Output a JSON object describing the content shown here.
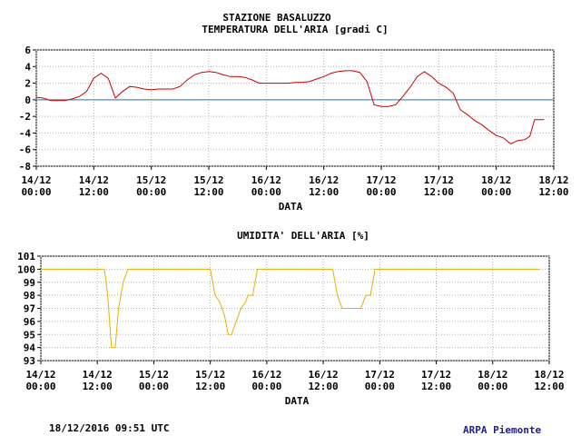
{
  "footer": {
    "timestamp": "18/12/2016 09:51 UTC",
    "organization": "ARPA Piemonte"
  },
  "chart_data": [
    {
      "type": "line",
      "title": "STAZIONE BASALUZZO",
      "subtitle": "TEMPERATURA DELL'ARIA [gradi C]",
      "xlabel": "DATA",
      "ylabel": "",
      "x_ticks": [
        {
          "date": "14/12",
          "time": "00:00"
        },
        {
          "date": "14/12",
          "time": "12:00"
        },
        {
          "date": "15/12",
          "time": "00:00"
        },
        {
          "date": "15/12",
          "time": "12:00"
        },
        {
          "date": "16/12",
          "time": "00:00"
        },
        {
          "date": "16/12",
          "time": "12:00"
        },
        {
          "date": "17/12",
          "time": "00:00"
        },
        {
          "date": "17/12",
          "time": "12:00"
        },
        {
          "date": "18/12",
          "time": "00:00"
        },
        {
          "date": "18/12",
          "time": "12:00"
        }
      ],
      "xlim": [
        0,
        108
      ],
      "ylim": [
        -8,
        6
      ],
      "y_ticks": [
        6,
        4,
        2,
        0,
        -2,
        -4,
        -6,
        -8
      ],
      "grid": true,
      "zero_line_color": "#1f7ab8",
      "series_color": "#cc0000",
      "x": [
        0,
        1.5,
        3,
        4.5,
        6,
        7.5,
        9,
        10.5,
        12,
        13.5,
        15,
        16.5,
        18,
        19.5,
        21,
        22.5,
        24,
        25.5,
        27,
        28.5,
        30,
        31.5,
        33,
        34.5,
        36,
        37.5,
        39,
        40.5,
        42,
        43.5,
        45,
        46.5,
        48,
        49.5,
        51,
        52.5,
        54,
        55.5,
        57,
        58.5,
        60,
        61.5,
        63,
        64.5,
        66,
        67.5,
        69,
        70.5,
        72,
        73.5,
        75,
        76.5,
        78,
        79.5,
        81,
        82.5,
        84,
        85.5,
        87,
        88.5,
        90,
        91.5,
        93,
        94.5,
        96,
        97.5,
        99,
        100.5,
        102,
        103,
        104,
        105,
        106
      ],
      "y": [
        0.3,
        0.2,
        -0.1,
        -0.1,
        -0.1,
        0.1,
        0.4,
        1.0,
        2.6,
        3.2,
        2.6,
        0.2,
        1.0,
        1.6,
        1.5,
        1.3,
        1.2,
        1.3,
        1.3,
        1.3,
        1.6,
        2.4,
        3.0,
        3.3,
        3.4,
        3.3,
        3.0,
        2.8,
        2.8,
        2.7,
        2.4,
        2.0,
        2.0,
        2.0,
        2.0,
        2.0,
        2.1,
        2.1,
        2.2,
        2.5,
        2.8,
        3.2,
        3.4,
        3.5,
        3.5,
        3.3,
        2.2,
        -0.6,
        -0.8,
        -0.8,
        -0.6,
        0.4,
        1.5,
        2.8,
        3.4,
        2.8,
        2.0,
        1.5,
        0.8,
        -1.2,
        -1.8,
        -2.5,
        -3.0,
        -3.7,
        -4.3,
        -4.6,
        -5.3,
        -4.9,
        -4.8,
        -4.4,
        -2.4,
        -2.4,
        -2.4
      ]
    },
    {
      "type": "line",
      "title": "UMIDITA' DELL'ARIA [%]",
      "xlabel": "DATA",
      "ylabel": "",
      "x_ticks": [
        {
          "date": "14/12",
          "time": "00:00"
        },
        {
          "date": "14/12",
          "time": "12:00"
        },
        {
          "date": "15/12",
          "time": "00:00"
        },
        {
          "date": "15/12",
          "time": "12:00"
        },
        {
          "date": "16/12",
          "time": "00:00"
        },
        {
          "date": "16/12",
          "time": "12:00"
        },
        {
          "date": "17/12",
          "time": "00:00"
        },
        {
          "date": "17/12",
          "time": "12:00"
        },
        {
          "date": "18/12",
          "time": "00:00"
        },
        {
          "date": "18/12",
          "time": "12:00"
        }
      ],
      "xlim": [
        0,
        108
      ],
      "ylim": [
        93,
        101
      ],
      "y_ticks": [
        101,
        100,
        99,
        98,
        97,
        96,
        95,
        94,
        93
      ],
      "grid": true,
      "series_color": "#e6b000",
      "x": [
        0,
        13.5,
        14.2,
        15,
        15.8,
        16.5,
        17.5,
        18.5,
        36,
        37,
        38,
        39,
        39.8,
        40.5,
        41.5,
        42.5,
        43.5,
        44,
        45,
        45.5,
        46,
        62,
        63,
        64,
        66,
        68,
        69,
        69.5,
        70,
        71,
        106
      ],
      "y": [
        100,
        100,
        98,
        94,
        94,
        97,
        99,
        100,
        100,
        98,
        97.5,
        96.5,
        95,
        95,
        96,
        97,
        97.5,
        98,
        98,
        99,
        100,
        100,
        98,
        97,
        97,
        97,
        98,
        98,
        98,
        100,
        100
      ]
    }
  ]
}
